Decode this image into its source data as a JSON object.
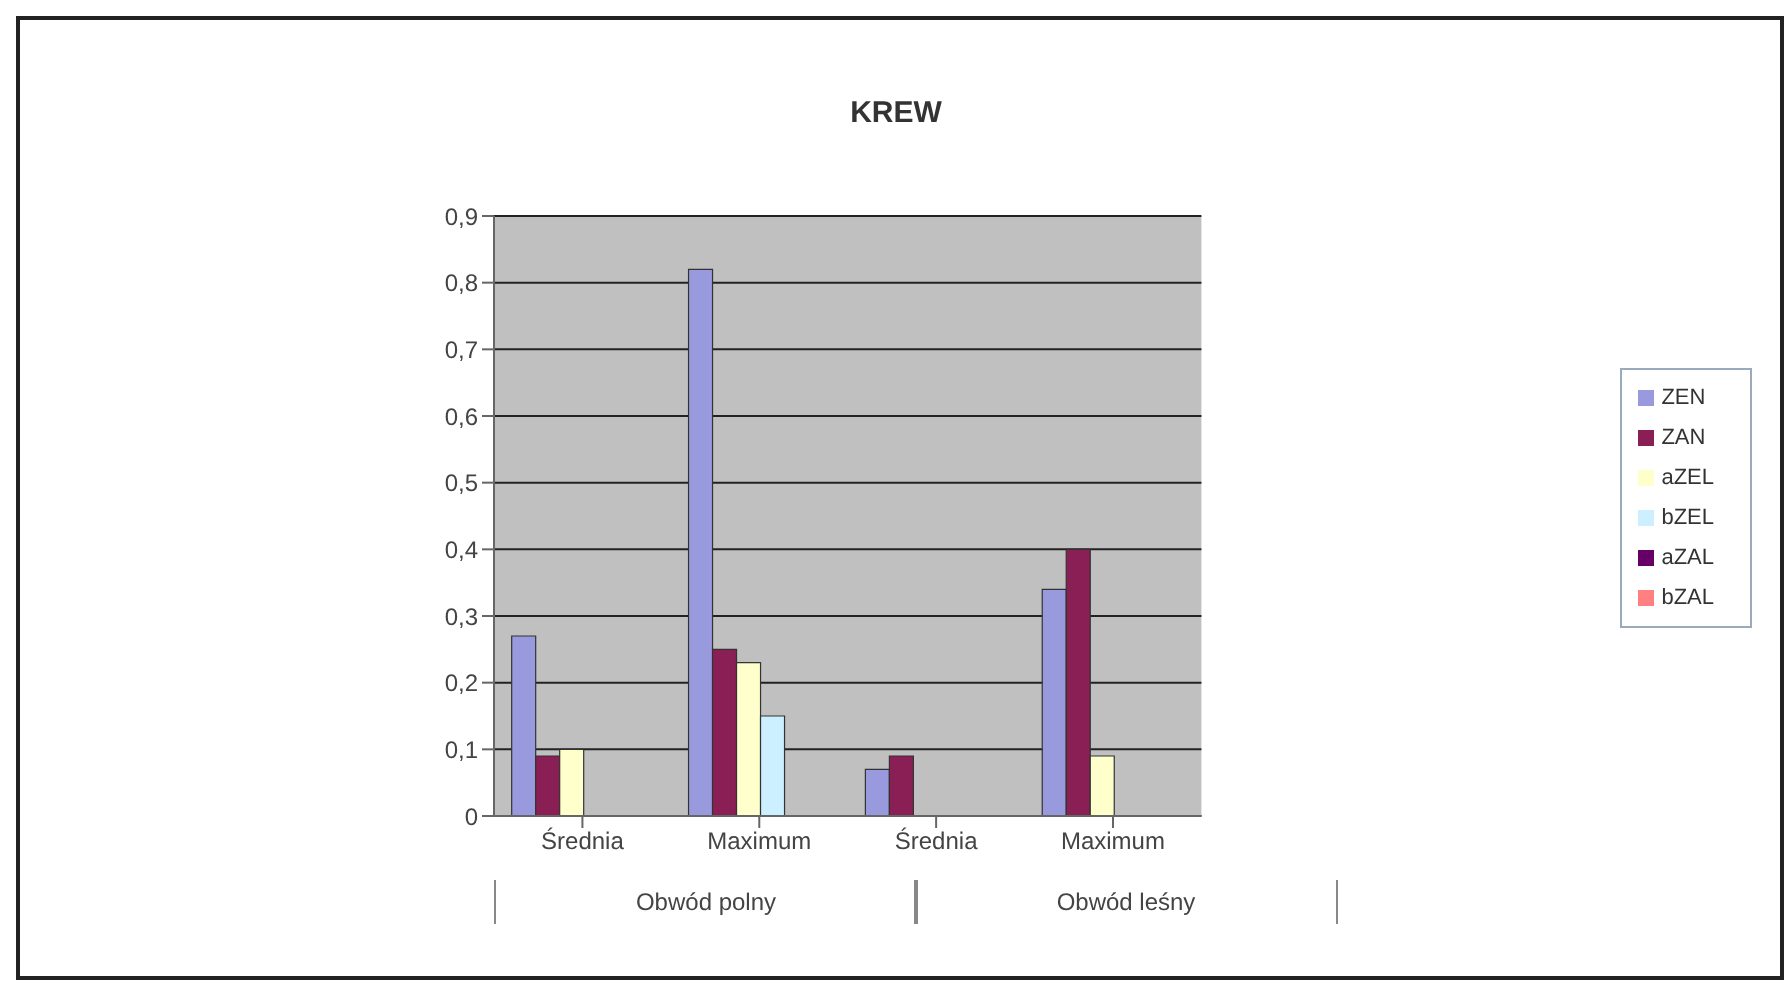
{
  "chart_data": {
    "type": "bar",
    "title": "KREW",
    "categories": [
      "Średnia",
      "Maximum",
      "Średnia",
      "Maximum"
    ],
    "annotations": [
      "Obwód polny",
      "Obwód leśny"
    ],
    "series": [
      {
        "name": "ZEN",
        "color": "#9999dd",
        "values": [
          0.27,
          0.82,
          0.07,
          0.34
        ]
      },
      {
        "name": "ZAN",
        "color": "#8a1f55",
        "values": [
          0.09,
          0.25,
          0.09,
          0.4
        ]
      },
      {
        "name": "aZEL",
        "color": "#ffffcc",
        "values": [
          0.1,
          0.23,
          0,
          0.09
        ]
      },
      {
        "name": "bZEL",
        "color": "#ccf0ff",
        "values": [
          0,
          0.15,
          0,
          0
        ]
      },
      {
        "name": "aZAL",
        "color": "#660066",
        "values": [
          0,
          0,
          0,
          0
        ]
      },
      {
        "name": "bZAL",
        "color": "#ff8080",
        "values": [
          0,
          0,
          0,
          0
        ]
      }
    ],
    "ylim": [
      0,
      0.9
    ],
    "yticks": [
      0,
      {
        "value": 0.1,
        "label": "0,1"
      },
      {
        "value": 0.2,
        "label": "0,2"
      },
      {
        "value": 0.3,
        "label": "0,3"
      },
      {
        "value": 0.4,
        "label": "0,4"
      },
      {
        "value": 0.5,
        "label": "0,5"
      },
      {
        "value": 0.6,
        "label": "0,6"
      },
      {
        "value": 0.7,
        "label": "0,7"
      },
      {
        "value": 0.8,
        "label": "0,8"
      },
      {
        "value": 0.9,
        "label": "0,9"
      }
    ],
    "grid": "y",
    "legend": "right"
  }
}
